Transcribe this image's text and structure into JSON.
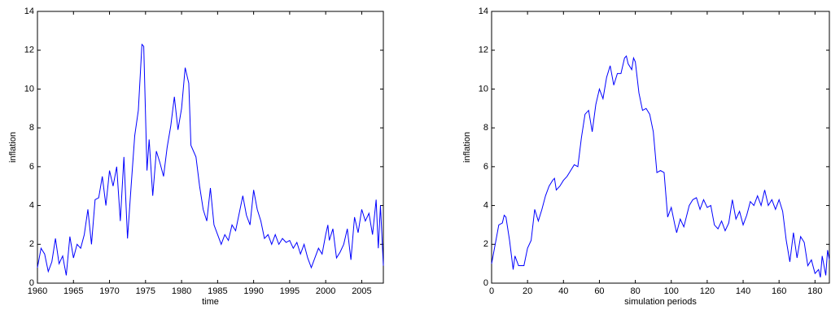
{
  "chart_data": [
    {
      "type": "line",
      "x_label": "time",
      "y_label": "inflation",
      "xlim": [
        1960,
        2008
      ],
      "ylim": [
        0,
        14
      ],
      "xticks": [
        1960,
        1965,
        1970,
        1975,
        1980,
        1985,
        1990,
        1995,
        2000,
        2005
      ],
      "yticks": [
        0,
        2,
        4,
        6,
        8,
        10,
        12,
        14
      ],
      "series": [
        {
          "color": "#0000ff",
          "x": [
            1960,
            1960.5,
            1961,
            1961.5,
            1962,
            1962.5,
            1963,
            1963.5,
            1964,
            1964.5,
            1965,
            1965.5,
            1966,
            1966.5,
            1967,
            1967.5,
            1968,
            1968.5,
            1969,
            1969.5,
            1970,
            1970.5,
            1971,
            1971.5,
            1972,
            1972.5,
            1973,
            1973.5,
            1974,
            1974.5,
            1974.75,
            1975.2,
            1975.5,
            1976,
            1976.5,
            1977,
            1977.5,
            1978,
            1978.5,
            1979,
            1979.5,
            1980,
            1980.5,
            1981,
            1981.3,
            1982,
            1982.5,
            1983,
            1983.5,
            1984,
            1984.5,
            1985,
            1985.5,
            1986,
            1986.5,
            1987,
            1987.5,
            1988,
            1988.5,
            1989,
            1989.5,
            1990,
            1990.5,
            1991,
            1991.5,
            1992,
            1992.5,
            1993,
            1993.5,
            1994,
            1994.5,
            1995,
            1995.5,
            1996,
            1996.5,
            1997,
            1997.5,
            1998,
            1998.5,
            1999,
            1999.5,
            2000,
            2000.3,
            2000.5,
            2001,
            2001.5,
            2002,
            2002.5,
            2003,
            2003.5,
            2004,
            2004.5,
            2005,
            2005.5,
            2006,
            2006.5,
            2007,
            2007.3,
            2007.6,
            2008
          ],
          "values": [
            0.8,
            1.8,
            1.5,
            0.6,
            1.1,
            2.3,
            1.0,
            1.4,
            0.4,
            2.4,
            1.3,
            2.0,
            1.8,
            2.5,
            3.8,
            2.0,
            4.3,
            4.4,
            5.5,
            4.0,
            5.8,
            5.0,
            6.0,
            3.2,
            6.5,
            2.3,
            5.0,
            7.6,
            8.9,
            12.3,
            12.2,
            5.8,
            7.4,
            4.5,
            6.8,
            6.2,
            5.5,
            7.0,
            8.1,
            9.6,
            7.9,
            9.0,
            11.1,
            10.3,
            7.1,
            6.5,
            5.0,
            3.8,
            3.2,
            4.9,
            3.0,
            2.5,
            2.0,
            2.5,
            2.2,
            3.0,
            2.7,
            3.6,
            4.5,
            3.5,
            3.0,
            4.8,
            3.8,
            3.2,
            2.3,
            2.5,
            2.0,
            2.5,
            2.0,
            2.3,
            2.1,
            2.2,
            1.8,
            2.1,
            1.5,
            2.0,
            1.3,
            0.8,
            1.3,
            1.8,
            1.5,
            2.5,
            3.0,
            2.2,
            2.8,
            1.3,
            1.6,
            2.0,
            2.8,
            1.2,
            3.4,
            2.6,
            3.8,
            3.2,
            3.6,
            2.5,
            4.3,
            1.8,
            4.0,
            0.9
          ]
        }
      ]
    },
    {
      "type": "line",
      "x_label": "simulation periods",
      "y_label": "inflation",
      "xlim": [
        0,
        188
      ],
      "ylim": [
        0,
        14
      ],
      "xticks": [
        0,
        20,
        40,
        60,
        80,
        100,
        120,
        140,
        160,
        180
      ],
      "yticks": [
        0,
        2,
        4,
        6,
        8,
        10,
        12,
        14
      ],
      "series": [
        {
          "color": "#0000ff",
          "x": [
            0,
            2,
            4,
            6,
            7,
            8,
            10,
            12,
            13,
            15,
            18,
            20,
            22,
            24,
            26,
            28,
            30,
            32,
            34,
            35,
            36,
            38,
            40,
            42,
            44,
            46,
            48,
            50,
            52,
            54,
            56,
            58,
            60,
            62,
            64,
            66,
            68,
            70,
            72,
            74,
            75,
            76,
            78,
            79,
            80,
            82,
            84,
            86,
            88,
            90,
            92,
            94,
            96,
            98,
            100,
            102,
            103,
            105,
            107,
            110,
            112,
            114,
            116,
            118,
            120,
            122,
            124,
            126,
            128,
            130,
            132,
            134,
            136,
            138,
            140,
            142,
            144,
            146,
            148,
            150,
            152,
            154,
            156,
            158,
            160,
            162,
            164,
            166,
            168,
            170,
            172,
            174,
            176,
            178,
            180,
            182,
            183,
            184,
            186,
            187,
            188
          ],
          "values": [
            1.0,
            2.0,
            3.0,
            3.1,
            3.5,
            3.4,
            2.2,
            0.7,
            1.4,
            0.9,
            0.9,
            1.8,
            2.2,
            3.8,
            3.2,
            3.8,
            4.5,
            5.0,
            5.3,
            5.4,
            4.8,
            5.0,
            5.3,
            5.5,
            5.8,
            6.1,
            6.0,
            7.5,
            8.7,
            8.9,
            7.8,
            9.2,
            10.0,
            9.5,
            10.6,
            11.2,
            10.2,
            10.8,
            10.8,
            11.6,
            11.7,
            11.3,
            11.0,
            11.6,
            11.4,
            9.8,
            8.9,
            9.0,
            8.7,
            7.8,
            5.7,
            5.8,
            5.7,
            3.4,
            3.9,
            3.0,
            2.6,
            3.3,
            2.9,
            4.0,
            4.3,
            4.4,
            3.8,
            4.3,
            3.9,
            4.0,
            3.0,
            2.8,
            3.2,
            2.7,
            3.1,
            4.3,
            3.3,
            3.7,
            3.0,
            3.5,
            4.2,
            4.0,
            4.5,
            4.0,
            4.8,
            4.0,
            4.3,
            3.8,
            4.3,
            3.7,
            2.2,
            1.1,
            2.6,
            1.3,
            2.4,
            2.1,
            0.9,
            1.2,
            0.5,
            0.7,
            0.3,
            1.4,
            0.4,
            1.7,
            1.2
          ]
        }
      ]
    }
  ]
}
